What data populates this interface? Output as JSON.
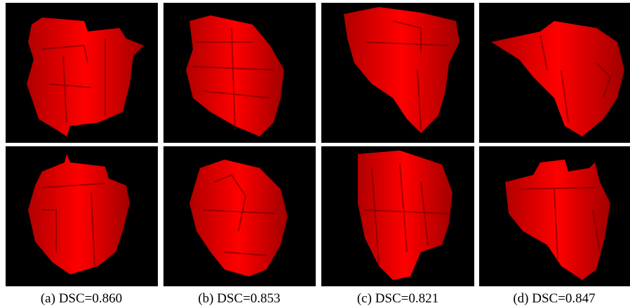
{
  "figure": {
    "panels": [
      {
        "label": "(a)",
        "caption": "DSC=0.860"
      },
      {
        "label": "(b)",
        "caption": "DSC=0.853"
      },
      {
        "label": "(c)",
        "caption": "DSC=0.821"
      },
      {
        "label": "(d)",
        "caption": "DSC=0.847"
      }
    ]
  }
}
